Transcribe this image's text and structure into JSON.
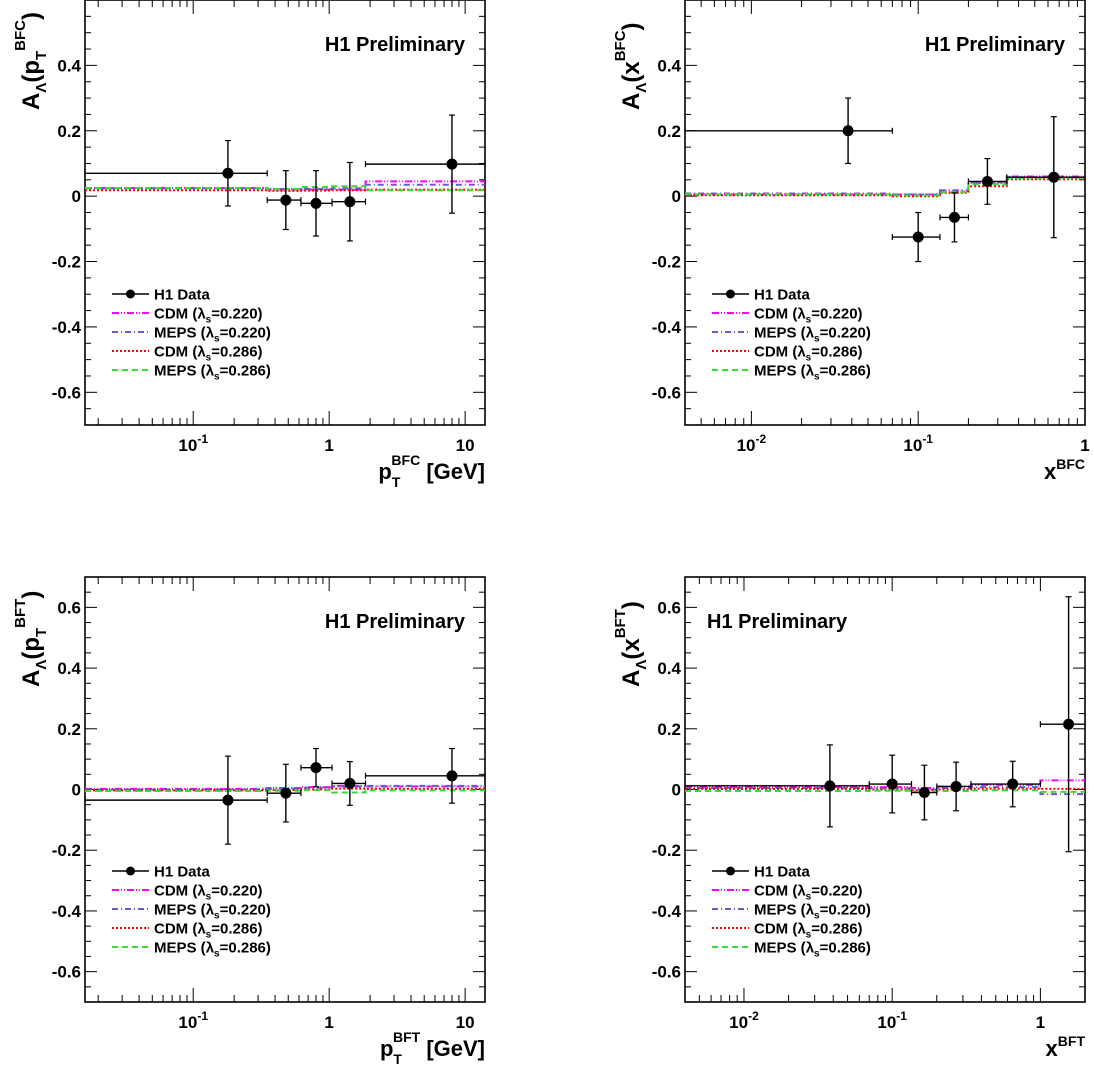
{
  "chart_data": [
    {
      "type": "scatter",
      "xscale": "log",
      "xlim": [
        0.016,
        14
      ],
      "ylim": [
        -0.7,
        0.6
      ],
      "yticks": [
        "-0.6",
        "-0.4",
        "-0.2",
        "0",
        "0.2",
        "0.4"
      ],
      "xticks": [
        {
          "v": 0.1,
          "base": "10",
          "exp": "-1"
        },
        {
          "v": 1,
          "base": "1",
          "exp": ""
        },
        {
          "v": 10,
          "base": "10",
          "exp": ""
        }
      ],
      "ylabel": {
        "main": "A",
        "sub": "Λ",
        "open": "(p",
        "sub2": "T",
        "sup": "BFC",
        "close": ")"
      },
      "xlabel": {
        "main": "p",
        "sub": "T",
        "sup": "BFC",
        "tail": " [GeV]"
      },
      "annotation": "H1 Preliminary",
      "annotation_pos": "top-right",
      "legend_pos": "bottom-left",
      "data": [
        {
          "x": 0.18,
          "xlo": 0.016,
          "xhi": 0.35,
          "y": 0.07,
          "err": 0.1
        },
        {
          "x": 0.48,
          "xlo": 0.35,
          "xhi": 0.62,
          "y": -0.012,
          "err": 0.09
        },
        {
          "x": 0.8,
          "xlo": 0.62,
          "xhi": 1.05,
          "y": -0.022,
          "err": 0.1
        },
        {
          "x": 1.42,
          "xlo": 1.05,
          "xhi": 1.85,
          "y": -0.017,
          "err": 0.12
        },
        {
          "x": 8.0,
          "xlo": 1.85,
          "xhi": 14,
          "y": 0.098,
          "err": 0.15
        }
      ],
      "edges": [
        0.016,
        0.35,
        0.62,
        1.05,
        1.85,
        14
      ],
      "series": [
        {
          "y": [
            0.025,
            0.022,
            0.02,
            0.02,
            0.045
          ]
        },
        {
          "y": [
            0.024,
            0.02,
            0.022,
            0.024,
            0.035
          ]
        },
        {
          "y": [
            0.018,
            0.016,
            0.017,
            0.018,
            0.02
          ]
        },
        {
          "y": [
            0.025,
            0.022,
            0.028,
            0.03,
            0.018
          ]
        }
      ]
    },
    {
      "type": "scatter",
      "xscale": "log",
      "xlim": [
        0.004,
        1
      ],
      "ylim": [
        -0.7,
        0.6
      ],
      "yticks": [
        "-0.6",
        "-0.4",
        "-0.2",
        "0",
        "0.2",
        "0.4"
      ],
      "xticks": [
        {
          "v": 0.01,
          "base": "10",
          "exp": "-2"
        },
        {
          "v": 0.1,
          "base": "10",
          "exp": "-1"
        },
        {
          "v": 1,
          "base": "1",
          "exp": ""
        }
      ],
      "ylabel": {
        "main": "A",
        "sub": "Λ",
        "open": "(x",
        "sub2": "",
        "sup": "BFC",
        "close": ")"
      },
      "xlabel": {
        "main": "x",
        "sub": "",
        "sup": "BFC",
        "tail": ""
      },
      "annotation": "H1 Preliminary",
      "annotation_pos": "top-right",
      "legend_pos": "bottom-left",
      "data": [
        {
          "x": 0.038,
          "xlo": 0.004,
          "xhi": 0.07,
          "y": 0.2,
          "err": 0.1
        },
        {
          "x": 0.1,
          "xlo": 0.07,
          "xhi": 0.135,
          "y": -0.125,
          "err": 0.075
        },
        {
          "x": 0.165,
          "xlo": 0.135,
          "xhi": 0.2,
          "y": -0.065,
          "err": 0.075
        },
        {
          "x": 0.26,
          "xlo": 0.2,
          "xhi": 0.34,
          "y": 0.045,
          "err": 0.07
        },
        {
          "x": 0.65,
          "xlo": 0.34,
          "xhi": 1,
          "y": 0.058,
          "err": 0.185
        }
      ],
      "edges": [
        0.004,
        0.07,
        0.135,
        0.2,
        0.34,
        1
      ],
      "series": [
        {
          "y": [
            0.005,
            0.005,
            0.015,
            0.04,
            0.06
          ]
        },
        {
          "y": [
            0.008,
            0.005,
            0.018,
            0.042,
            0.058
          ]
        },
        {
          "y": [
            0.003,
            0.0,
            0.01,
            0.03,
            0.052
          ]
        },
        {
          "y": [
            0.006,
            0.002,
            0.012,
            0.036,
            0.055
          ]
        }
      ]
    },
    {
      "type": "scatter",
      "xscale": "log",
      "xlim": [
        0.016,
        14
      ],
      "ylim": [
        -0.7,
        0.7
      ],
      "yticks": [
        "-0.6",
        "-0.4",
        "-0.2",
        "0",
        "0.2",
        "0.4",
        "0.6"
      ],
      "xticks": [
        {
          "v": 0.1,
          "base": "10",
          "exp": "-1"
        },
        {
          "v": 1,
          "base": "1",
          "exp": ""
        },
        {
          "v": 10,
          "base": "10",
          "exp": ""
        }
      ],
      "ylabel": {
        "main": "A",
        "sub": "Λ",
        "open": "(p",
        "sub2": "T",
        "sup": "BFT",
        "close": ")"
      },
      "xlabel": {
        "main": "p",
        "sub": "T",
        "sup": "BFT",
        "tail": " [GeV]"
      },
      "annotation": "H1 Preliminary",
      "annotation_pos": "top-right",
      "legend_pos": "bottom-left",
      "data": [
        {
          "x": 0.18,
          "xlo": 0.016,
          "xhi": 0.35,
          "y": -0.035,
          "err": 0.145
        },
        {
          "x": 0.48,
          "xlo": 0.35,
          "xhi": 0.62,
          "y": -0.012,
          "err": 0.095
        },
        {
          "x": 0.8,
          "xlo": 0.62,
          "xhi": 1.05,
          "y": 0.072,
          "err": 0.063
        },
        {
          "x": 1.42,
          "xlo": 1.05,
          "xhi": 1.85,
          "y": 0.02,
          "err": 0.072
        },
        {
          "x": 8.0,
          "xlo": 1.85,
          "xhi": 14,
          "y": 0.045,
          "err": 0.09
        }
      ],
      "edges": [
        0.016,
        0.35,
        0.62,
        1.05,
        1.85,
        14
      ],
      "series": [
        {
          "y": [
            0.002,
            0.005,
            0.008,
            0.012,
            0.01
          ]
        },
        {
          "y": [
            0.0,
            0.003,
            0.006,
            0.01,
            0.012
          ]
        },
        {
          "y": [
            -0.003,
            -0.002,
            0.0,
            0.003,
            0.002
          ]
        },
        {
          "y": [
            -0.005,
            -0.004,
            -0.002,
            -0.01,
            -0.003
          ]
        }
      ]
    },
    {
      "type": "scatter",
      "xscale": "log",
      "xlim": [
        0.004,
        2
      ],
      "ylim": [
        -0.7,
        0.7
      ],
      "yticks": [
        "-0.6",
        "-0.4",
        "-0.2",
        "0",
        "0.2",
        "0.4",
        "0.6"
      ],
      "xticks": [
        {
          "v": 0.01,
          "base": "10",
          "exp": "-2"
        },
        {
          "v": 0.1,
          "base": "10",
          "exp": "-1"
        },
        {
          "v": 1,
          "base": "1",
          "exp": ""
        }
      ],
      "ylabel": {
        "main": "A",
        "sub": "Λ",
        "open": "(x",
        "sub2": "",
        "sup": "BFT",
        "close": ")"
      },
      "xlabel": {
        "main": "x",
        "sub": "",
        "sup": "BFT",
        "tail": ""
      },
      "annotation": "H1 Preliminary",
      "annotation_pos": "top-left",
      "legend_pos": "bottom-left",
      "data": [
        {
          "x": 0.038,
          "xlo": 0.004,
          "xhi": 0.07,
          "y": 0.012,
          "err": 0.135
        },
        {
          "x": 0.1,
          "xlo": 0.07,
          "xhi": 0.135,
          "y": 0.018,
          "err": 0.095
        },
        {
          "x": 0.165,
          "xlo": 0.135,
          "xhi": 0.2,
          "y": -0.01,
          "err": 0.09
        },
        {
          "x": 0.27,
          "xlo": 0.2,
          "xhi": 0.34,
          "y": 0.01,
          "err": 0.08
        },
        {
          "x": 0.65,
          "xlo": 0.34,
          "xhi": 1,
          "y": 0.018,
          "err": 0.075
        },
        {
          "x": 1.55,
          "xlo": 1,
          "xhi": 2,
          "y": 0.215,
          "err": 0.42
        }
      ],
      "edges": [
        0.004,
        0.07,
        0.135,
        0.2,
        0.34,
        1,
        2
      ],
      "series": [
        {
          "y": [
            0.008,
            0.008,
            0.005,
            0.01,
            0.015,
            0.03
          ]
        },
        {
          "y": [
            0.005,
            0.004,
            0.0,
            0.005,
            0.008,
            -0.015
          ]
        },
        {
          "y": [
            0.002,
            0.0,
            -0.003,
            0.0,
            0.003,
            0.002
          ]
        },
        {
          "y": [
            -0.005,
            -0.004,
            -0.008,
            -0.005,
            -0.003,
            -0.008
          ]
        }
      ]
    }
  ],
  "legend": [
    {
      "kind": "data",
      "name": "H1 Data",
      "main": "H1 Data",
      "lam": "",
      "val": ""
    },
    {
      "kind": "line",
      "name": "CDM (λs=0.220)",
      "main": "CDM (",
      "lam": "λ",
      "val": "=0.220)",
      "color": "#ff00ff",
      "dash": "7,2,1,2,1,2"
    },
    {
      "kind": "line",
      "name": "MEPS (λs=0.220)",
      "main": "MEPS (",
      "lam": "λ",
      "val": "=0.220)",
      "color": "#6a5acd",
      "dash": "6,3,1,3"
    },
    {
      "kind": "line",
      "name": "CDM (λs=0.286)",
      "main": "CDM (",
      "lam": "λ",
      "val": "=0.286)",
      "color": "#ff0000",
      "dash": "2,2"
    },
    {
      "kind": "line",
      "name": "MEPS (λs=0.286)",
      "main": "MEPS (",
      "lam": "λ",
      "val": "=0.286)",
      "color": "#33dd33",
      "dash": "6,4"
    }
  ],
  "legend_sub": "s"
}
